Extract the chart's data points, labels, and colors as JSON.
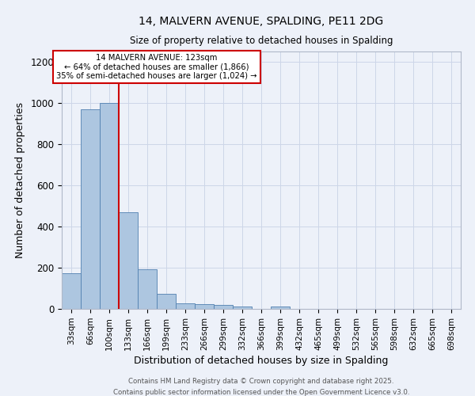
{
  "title1": "14, MALVERN AVENUE, SPALDING, PE11 2DG",
  "title2": "Size of property relative to detached houses in Spalding",
  "xlabel": "Distribution of detached houses by size in Spalding",
  "ylabel": "Number of detached properties",
  "categories": [
    "33sqm",
    "66sqm",
    "100sqm",
    "133sqm",
    "166sqm",
    "199sqm",
    "233sqm",
    "266sqm",
    "299sqm",
    "332sqm",
    "366sqm",
    "399sqm",
    "432sqm",
    "465sqm",
    "499sqm",
    "532sqm",
    "565sqm",
    "598sqm",
    "632sqm",
    "665sqm",
    "698sqm"
  ],
  "values": [
    175,
    970,
    1000,
    470,
    192,
    75,
    28,
    22,
    18,
    10,
    0,
    12,
    0,
    0,
    0,
    0,
    0,
    0,
    0,
    0,
    0
  ],
  "bar_color": "#adc6e0",
  "bar_edge_color": "#5080b0",
  "bar_edge_width": 0.6,
  "red_line_color": "#cc0000",
  "annotation_line1": "14 MALVERN AVENUE: 123sqm",
  "annotation_line2": "← 64% of detached houses are smaller (1,866)",
  "annotation_line3": "35% of semi-detached houses are larger (1,024) →",
  "annotation_box_color": "#ffffff",
  "annotation_box_edge": "#cc0000",
  "grid_color": "#cdd6e8",
  "bg_color": "#edf1f9",
  "ylim": [
    0,
    1250
  ],
  "yticks": [
    0,
    200,
    400,
    600,
    800,
    1000,
    1200
  ],
  "footnote1": "Contains HM Land Registry data © Crown copyright and database right 2025.",
  "footnote2": "Contains public sector information licensed under the Open Government Licence v3.0."
}
